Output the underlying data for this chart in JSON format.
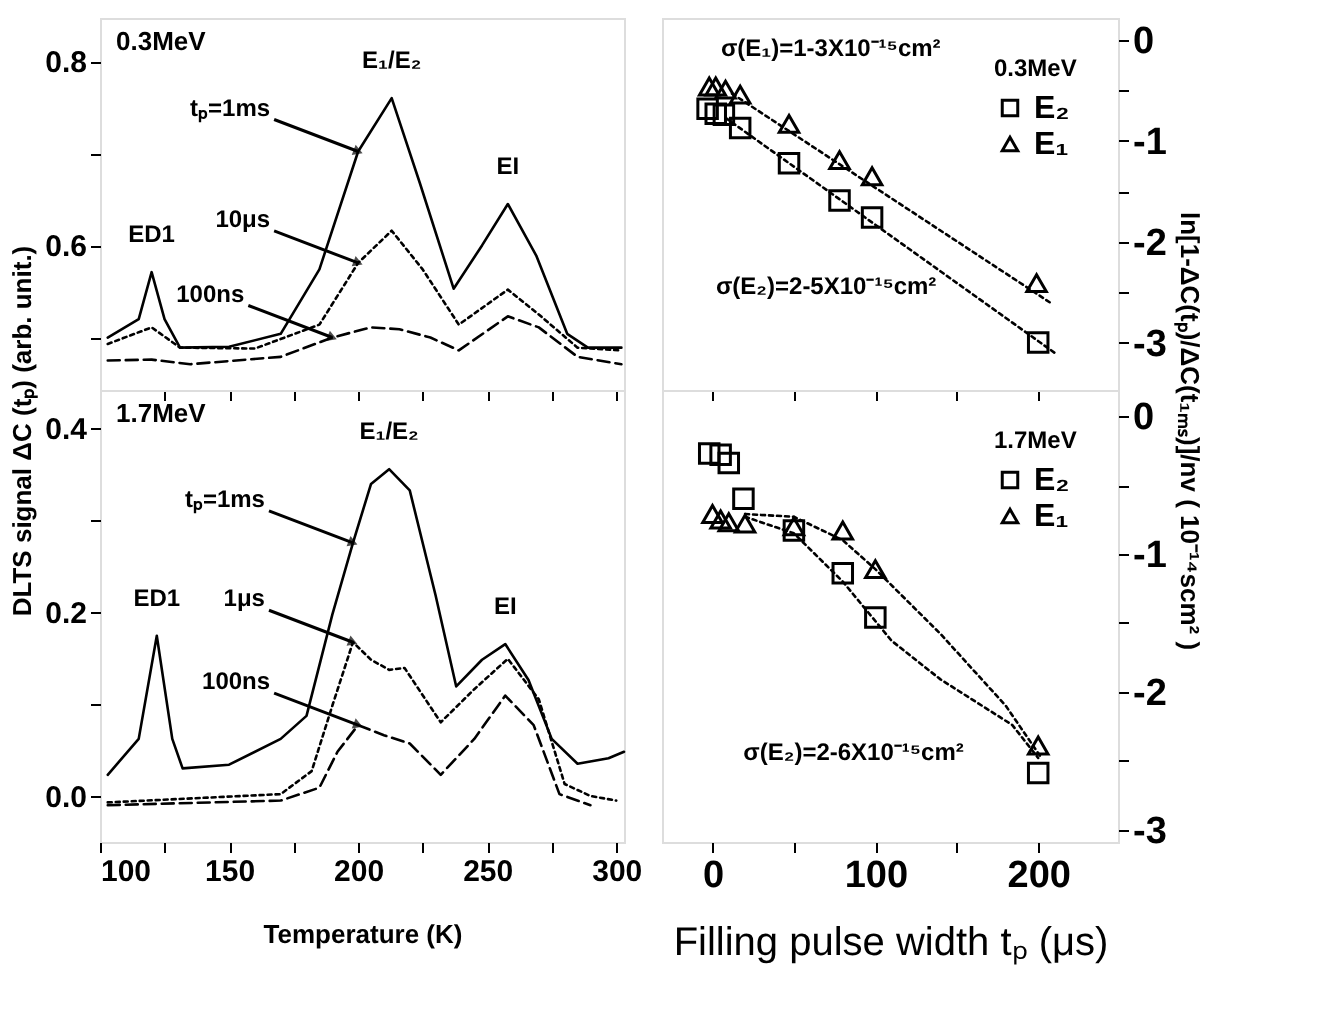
{
  "chart_data": [
    {
      "type": "line",
      "ylabel": "DLTS signal ΔC (tₚ) (arb. unit.)",
      "xlim": [
        100,
        303
      ],
      "ylim": [
        0.443,
        0.847
      ],
      "xticks": [
        100,
        {
          "value": 125,
          "label": null
        },
        150,
        {
          "value": 175,
          "label": null
        },
        200,
        {
          "value": 225,
          "label": null
        },
        250,
        {
          "value": 275,
          "label": null
        },
        300
      ],
      "yticks": [
        {
          "value": 0.5,
          "label": null
        },
        0.6,
        {
          "value": 0.7,
          "label": null
        },
        0.8
      ],
      "tick_labels": "y",
      "grid": false,
      "legend": false,
      "annotations": [
        "0.3MeV",
        "ED1",
        "E₁/E₂",
        "EI"
      ],
      "series": [
        {
          "name": "tₚ=1ms",
          "color": "#000000",
          "line_style": "solid",
          "x": [
            103,
            115,
            120,
            125,
            131,
            150,
            170,
            185,
            200,
            213,
            224,
            237,
            248,
            258,
            269,
            281,
            289,
            302
          ],
          "values": [
            0.5,
            0.52,
            0.571,
            0.52,
            0.489,
            0.49,
            0.504,
            0.574,
            0.702,
            0.76,
            0.667,
            0.553,
            0.6,
            0.645,
            0.589,
            0.504,
            0.489,
            0.489
          ]
        },
        {
          "name": "10μs",
          "color": "#000000",
          "line_style": "dotted",
          "x": [
            103,
            120,
            131,
            160,
            185,
            200,
            213,
            225,
            239,
            258,
            270,
            285,
            302
          ],
          "values": [
            0.493,
            0.511,
            0.489,
            0.488,
            0.514,
            0.581,
            0.616,
            0.574,
            0.514,
            0.552,
            0.525,
            0.489,
            0.486
          ]
        },
        {
          "name": "100ns",
          "color": "#000000",
          "line_style": "dashed",
          "x": [
            103,
            120,
            135,
            170,
            190,
            205,
            216,
            228,
            239,
            258,
            270,
            285,
            302
          ],
          "values": [
            0.475,
            0.476,
            0.471,
            0.479,
            0.5,
            0.511,
            0.509,
            0.5,
            0.486,
            0.523,
            0.511,
            0.479,
            0.471
          ]
        }
      ]
    },
    {
      "type": "line",
      "xlabel": "Temperature (K)",
      "xlim": [
        100,
        303
      ],
      "ylim": [
        -0.05,
        0.441
      ],
      "xticks": [
        100,
        {
          "value": 125,
          "label": null
        },
        150,
        {
          "value": 175,
          "label": null
        },
        200,
        {
          "value": 225,
          "label": null
        },
        250,
        {
          "value": 275,
          "label": null
        },
        300
      ],
      "yticks": [
        {
          "value": 0,
          "label": "0.0"
        },
        {
          "value": 0.1,
          "label": null
        },
        0.2,
        {
          "value": 0.3,
          "label": null
        },
        0.4
      ],
      "grid": false,
      "legend": false,
      "annotations": [
        "1.7MeV",
        "ED1",
        "E₁/E₂",
        "EI"
      ],
      "series": [
        {
          "name": "tₚ=1ms",
          "color": "#000000",
          "line_style": "solid",
          "x": [
            103,
            115,
            122,
            128,
            132,
            150,
            170,
            180,
            190,
            198,
            205,
            212,
            220,
            230,
            238,
            248,
            257,
            266,
            275,
            285,
            297,
            303
          ],
          "values": [
            0.023,
            0.062,
            0.174,
            0.062,
            0.03,
            0.034,
            0.062,
            0.087,
            0.197,
            0.275,
            0.339,
            0.355,
            0.332,
            0.218,
            0.119,
            0.148,
            0.165,
            0.126,
            0.062,
            0.035,
            0.041,
            0.048
          ]
        },
        {
          "name": "1μs",
          "color": "#000000",
          "line_style": "dotted",
          "x": [
            103,
            170,
            182,
            190,
            198,
            205,
            212,
            218,
            232,
            245,
            258,
            270,
            280,
            290,
            300
          ],
          "values": [
            -0.007,
            0.002,
            0.027,
            0.098,
            0.167,
            0.148,
            0.137,
            0.139,
            0.08,
            0.116,
            0.149,
            0.105,
            0.013,
            0.0,
            -0.005
          ]
        },
        {
          "name": "100ns",
          "color": "#000000",
          "line_style": "dashed",
          "x": [
            103,
            170,
            185,
            192,
            200,
            210,
            220,
            232,
            245,
            257,
            268,
            278,
            290
          ],
          "values": [
            -0.01,
            -0.005,
            0.009,
            0.048,
            0.077,
            0.066,
            0.057,
            0.023,
            0.062,
            0.109,
            0.077,
            0.002,
            -0.01
          ]
        }
      ]
    },
    {
      "type": "scatter",
      "ylabel": "ln[1-ΔC(tₚ)/ΔC(t₁ₘₛ)]/nv ( 10⁻¹⁴scm² )",
      "xlim": [
        -31,
        249
      ],
      "ylim": [
        -3.47,
        0.22
      ],
      "xticks": [
        0,
        {
          "value": 50,
          "label": null
        },
        100,
        {
          "value": 150,
          "label": null
        },
        200
      ],
      "yticks": [
        0,
        {
          "value": -0.5,
          "label": null
        },
        -1,
        {
          "value": -1.5,
          "label": null
        },
        -2,
        {
          "value": -2.5,
          "label": null
        },
        -3
      ],
      "tick_labels": "y",
      "grid": false,
      "legend": "top right",
      "legend_title": "0.3MeV",
      "annotations": [
        "σ(E₁)=1-3X10⁻¹⁵cm²",
        "σ(E₂)=2-5X10⁻¹⁵cm²"
      ],
      "series": [
        {
          "name": "E₂",
          "color": "#000000",
          "marker": "square",
          "x": [
            -3,
            2,
            7,
            17,
            47,
            78,
            98,
            200
          ],
          "values": [
            -0.68,
            -0.73,
            -0.74,
            -0.87,
            -1.22,
            -1.59,
            -1.76,
            -3.0
          ]
        },
        {
          "name": "E₁",
          "color": "#000000",
          "marker": "triangle",
          "x": [
            -2,
            2,
            8,
            17,
            47,
            78,
            98,
            199
          ],
          "values": [
            -0.46,
            -0.46,
            -0.49,
            -0.54,
            -0.83,
            -1.19,
            -1.35,
            -2.41
          ]
        },
        {
          "type": "line",
          "color": "#000000",
          "line_style": "dotted",
          "marker": "none",
          "x": [
            12,
            208
          ],
          "values": [
            -0.53,
            -2.61
          ]
        },
        {
          "type": "line",
          "color": "#000000",
          "line_style": "dotted",
          "marker": "none",
          "x": [
            8,
            210
          ],
          "values": [
            -0.77,
            -3.1
          ]
        }
      ]
    },
    {
      "type": "scatter",
      "xlabel": "Filling pulse width tₚ (μs)",
      "xlim": [
        -31,
        249
      ],
      "ylim": [
        -3.09,
        0.19
      ],
      "xticks": [
        0,
        {
          "value": 50,
          "label": null
        },
        100,
        {
          "value": 150,
          "label": null
        },
        200
      ],
      "yticks": [
        0,
        {
          "value": -0.5,
          "label": null
        },
        -1,
        {
          "value": -1.5,
          "label": null
        },
        -2,
        {
          "value": -2.5,
          "label": null
        },
        -3
      ],
      "grid": false,
      "legend": "top right",
      "legend_title": "1.7MeV",
      "annotations": [
        "σ(E₂)=2-6X10⁻¹⁵cm²"
      ],
      "series": [
        {
          "name": "E₂",
          "color": "#000000",
          "marker": "square",
          "x": [
            -2,
            5,
            10,
            19,
            50,
            80,
            100,
            200
          ],
          "values": [
            -0.27,
            -0.28,
            -0.34,
            -0.6,
            -0.83,
            -1.14,
            -1.46,
            -2.59
          ]
        },
        {
          "name": "E₁",
          "color": "#000000",
          "marker": "triangle",
          "x": [
            0,
            5,
            10,
            20,
            50,
            80,
            100,
            200
          ],
          "values": [
            -0.71,
            -0.75,
            -0.77,
            -0.78,
            -0.8,
            -0.83,
            -1.11,
            -2.39
          ]
        },
        {
          "type": "line",
          "color": "#000000",
          "line_style": "dotted",
          "marker": "none",
          "x": [
            20,
            50,
            80,
            100,
            140,
            180,
            202
          ],
          "values": [
            -0.71,
            -0.73,
            -0.9,
            -1.11,
            -1.58,
            -2.1,
            -2.48
          ]
        },
        {
          "type": "line",
          "color": "#000000",
          "line_style": "dotted",
          "marker": "none",
          "x": [
            20,
            50,
            80,
            110,
            140,
            184,
            200
          ],
          "values": [
            -0.73,
            -0.85,
            -1.2,
            -1.63,
            -1.91,
            -2.24,
            -2.48
          ]
        }
      ]
    }
  ]
}
